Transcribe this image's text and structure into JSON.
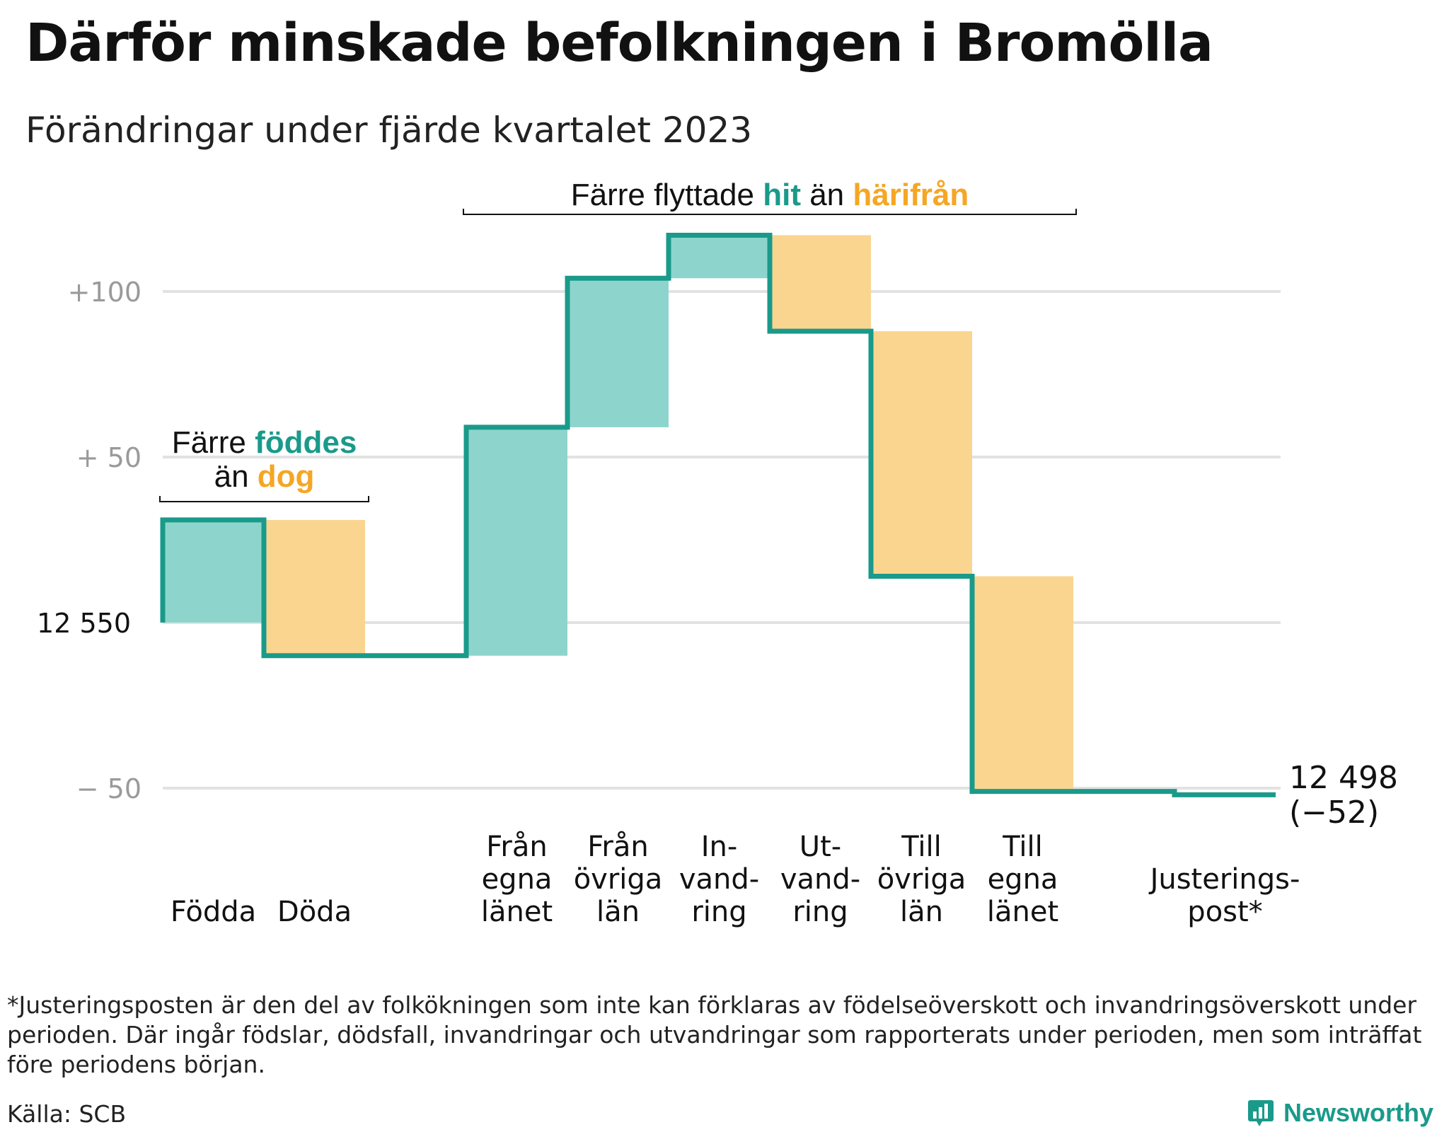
{
  "title": "Därför minskade befolkningen i Bromölla",
  "subtitle": "Förändringar under fjärde kvartalet 2023",
  "colors": {
    "inflow": "#8dd5cc",
    "outflow": "#fad58f",
    "line": "#1a9a8a",
    "accent_teal": "#1a9a8a",
    "accent_orange": "#f5a623",
    "grid": "#e2e2e2",
    "tick": "#9a9a9a"
  },
  "chart_data": {
    "type": "waterfall",
    "base": 12550,
    "end": 12498,
    "end_label": "12 498",
    "end_change_label": "(−52)",
    "y_ticks": [
      {
        "value": 100,
        "label": "+100"
      },
      {
        "value": 50,
        "label": "+  50"
      },
      {
        "value": 0,
        "label": "12  550"
      },
      {
        "value": -50,
        "label": "−  50"
      }
    ],
    "ylim": [
      -62,
      120
    ],
    "grid": true,
    "steps": [
      {
        "label": [
          "Födda"
        ],
        "value": 31,
        "kind": "in"
      },
      {
        "label": [
          "Döda"
        ],
        "value": -41,
        "kind": "out"
      },
      {
        "label": [],
        "value": 0,
        "kind": "gap"
      },
      {
        "label": [
          "Från",
          "egna",
          "länet"
        ],
        "value": 69,
        "kind": "in"
      },
      {
        "label": [
          "Från",
          "övriga",
          "län"
        ],
        "value": 45,
        "kind": "in"
      },
      {
        "label": [
          "In-",
          "vand-",
          "ring"
        ],
        "value": 13,
        "kind": "in"
      },
      {
        "label": [
          "Ut-",
          "vand-",
          "ring"
        ],
        "value": -29,
        "kind": "out"
      },
      {
        "label": [
          "Till",
          "övriga",
          "län"
        ],
        "value": -74,
        "kind": "out"
      },
      {
        "label": [
          "Till",
          "egna",
          "länet"
        ],
        "value": -65,
        "kind": "out"
      },
      {
        "label": [],
        "value": 0,
        "kind": "flat"
      },
      {
        "label": [
          "Justerings-",
          "post*"
        ],
        "value": -1,
        "kind": "adj"
      }
    ],
    "annotations": [
      {
        "text": [
          "Färre ",
          "föddes",
          "än ",
          "dog"
        ],
        "over_steps": [
          0,
          1
        ]
      },
      {
        "text": [
          "Färre flyttade ",
          "hit",
          " än ",
          "härifrån"
        ],
        "over_steps": [
          3,
          8
        ]
      }
    ]
  },
  "footnote": "*Justeringsposten är den del av folkökningen som inte kan förklaras av födelseöverskott och invandringsöverskott under perioden. Där ingår födslar, dödsfall, invandringar och utvandringar som rapporterats under perioden, men som inträffat före periodens början.",
  "source": "Källa: SCB",
  "brand": "Newsworthy"
}
